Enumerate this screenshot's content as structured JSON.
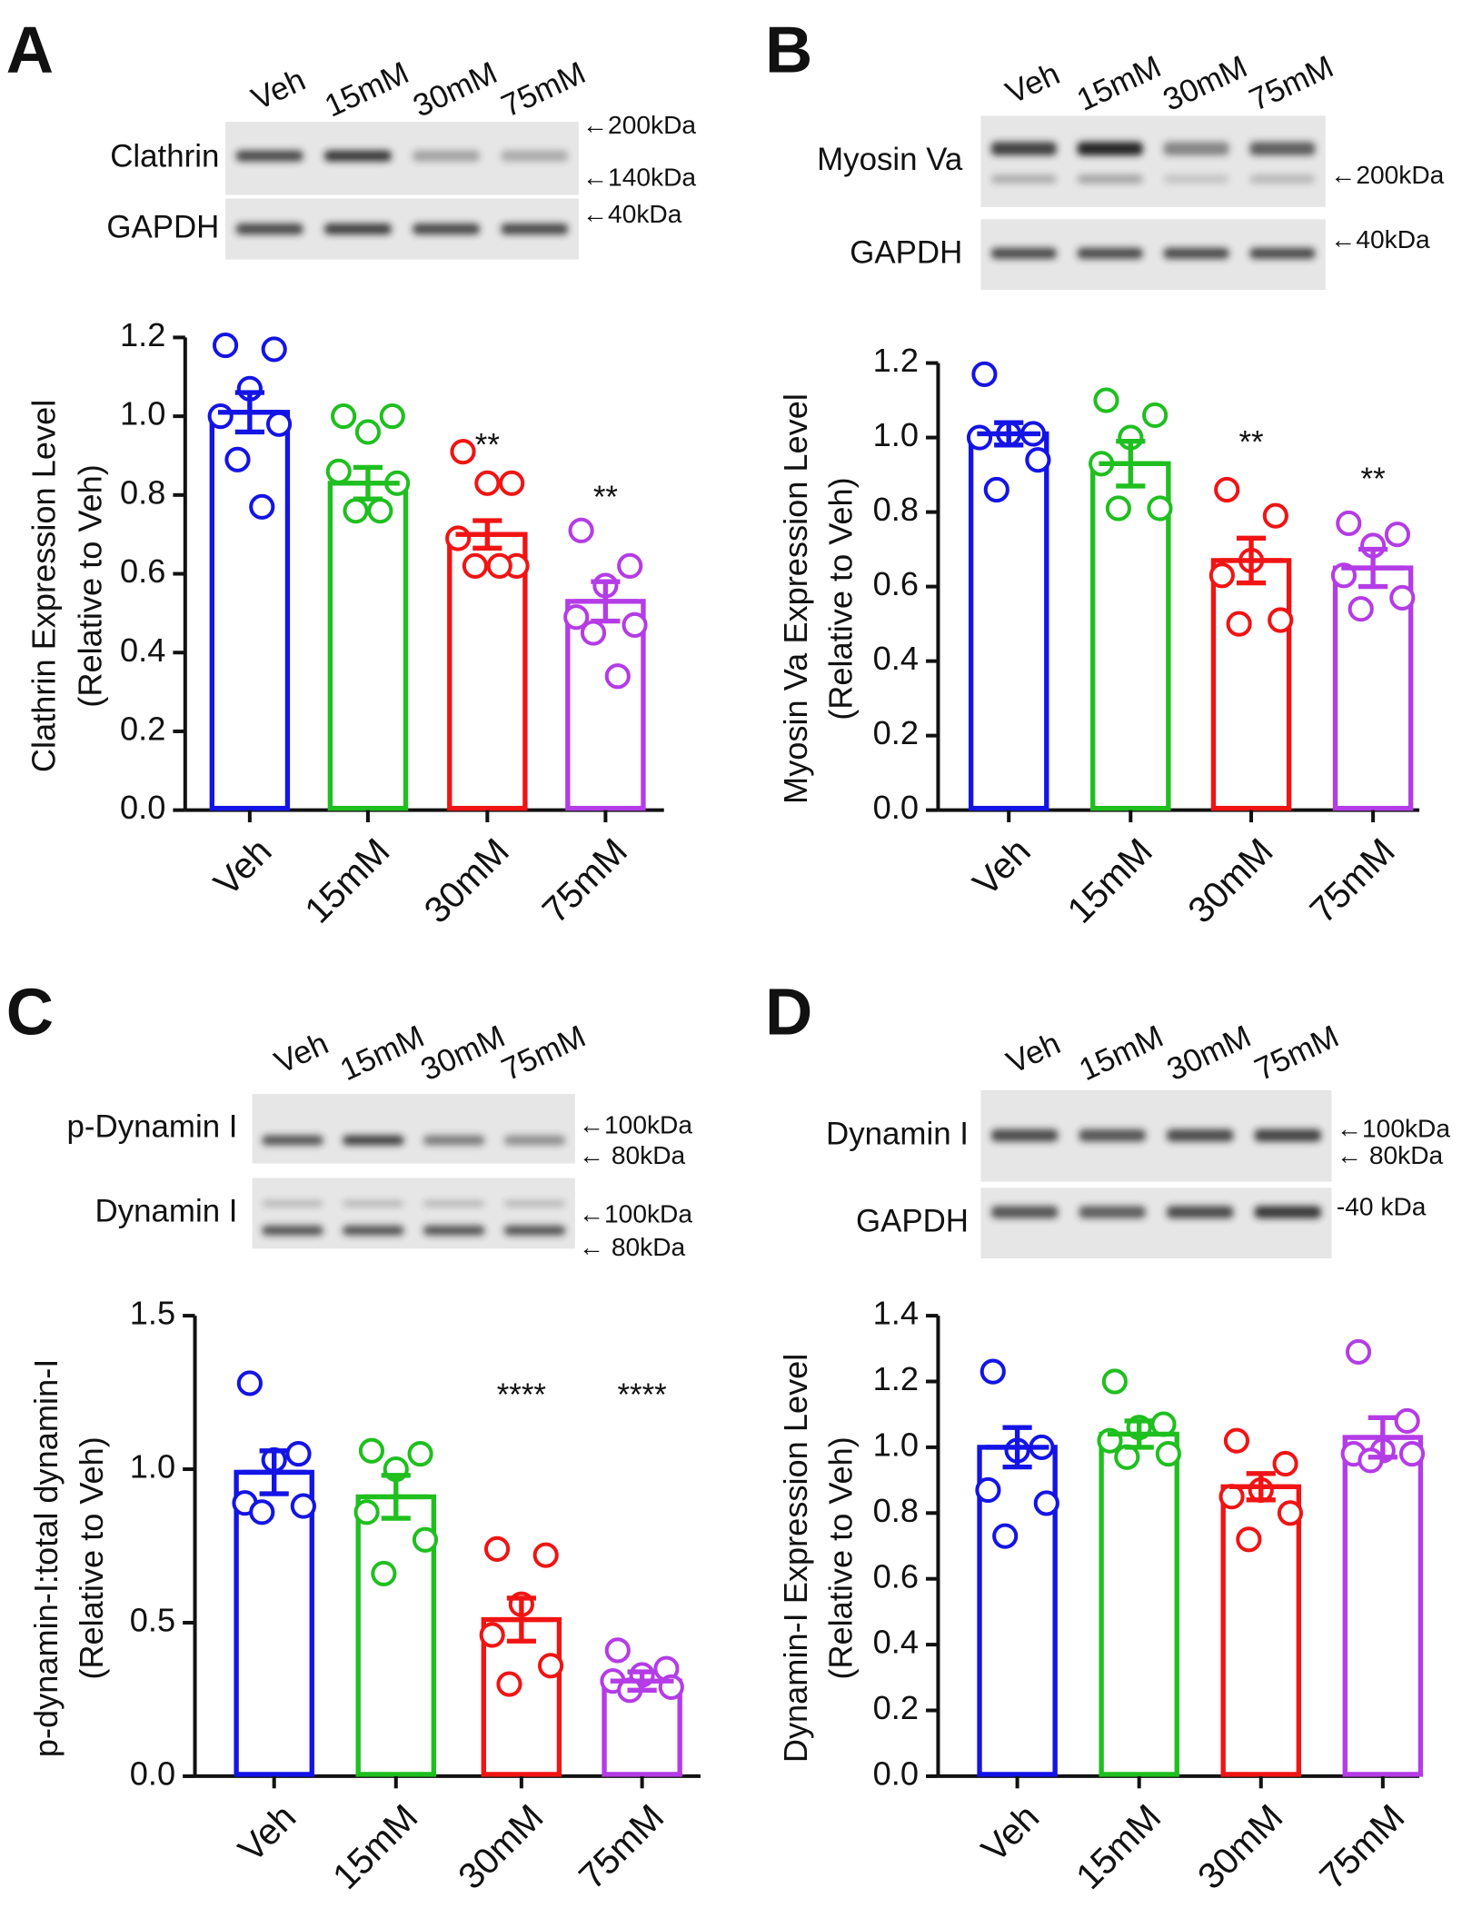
{
  "chart_data": [
    {
      "type": "bar",
      "panel": "A",
      "blot": {
        "lanes": [
          "Veh",
          "15mM",
          "30mM",
          "75mM"
        ],
        "rows": [
          "Clathrin",
          "GAPDH"
        ],
        "markers": [
          "←200kDa",
          "←140kDa",
          "←40kDa"
        ]
      },
      "ylabel": [
        "Clathrin Expression Level",
        "(Relative to Veh)"
      ],
      "categories": [
        "Veh",
        "15mM",
        "30mM",
        "75mM"
      ],
      "colors": [
        "#1414e6",
        "#1fbf1f",
        "#f01414",
        "#b43ce6"
      ],
      "values": [
        1.01,
        0.83,
        0.7,
        0.53
      ],
      "errors": [
        0.05,
        0.04,
        0.035,
        0.05
      ],
      "points": [
        [
          1.18,
          1.17,
          1.07,
          1.0,
          0.98,
          0.89,
          0.77
        ],
        [
          1.0,
          1.0,
          0.96,
          0.86,
          0.83,
          0.76,
          0.76
        ],
        [
          0.91,
          0.83,
          0.83,
          0.69,
          0.62,
          0.62,
          0.62
        ],
        [
          0.71,
          0.62,
          0.57,
          0.49,
          0.47,
          0.45,
          0.34
        ]
      ],
      "significance": [
        null,
        null,
        "**",
        "**"
      ],
      "ylim": [
        0,
        1.2
      ],
      "yticks": [
        {
          "value": 0,
          "label": "0.0"
        },
        0.2,
        0.4,
        0.6,
        0.8,
        {
          "value": 1,
          "label": "1.0"
        },
        1.2
      ]
    },
    {
      "type": "bar",
      "panel": "B",
      "blot": {
        "lanes": [
          "Veh",
          "15mM",
          "30mM",
          "75mM"
        ],
        "rows": [
          "Myosin Va",
          "GAPDH"
        ],
        "markers": [
          "←200kDa",
          "←40kDa"
        ]
      },
      "ylabel": [
        "Myosin Va Expression Level",
        "(Relative to Veh)"
      ],
      "categories": [
        "Veh",
        "15mM",
        "30mM",
        "75mM"
      ],
      "colors": [
        "#1414e6",
        "#1fbf1f",
        "#f01414",
        "#b43ce6"
      ],
      "values": [
        1.01,
        0.93,
        0.67,
        0.65
      ],
      "errors": [
        0.03,
        0.06,
        0.06,
        0.05
      ],
      "points": [
        [
          1.17,
          1.01,
          1.01,
          1.0,
          0.94,
          0.86
        ],
        [
          1.1,
          1.06,
          1.0,
          0.93,
          0.81,
          0.81
        ],
        [
          0.86,
          0.79,
          0.67,
          0.63,
          0.51,
          0.5
        ],
        [
          0.77,
          0.74,
          0.71,
          0.63,
          0.57,
          0.54
        ]
      ],
      "significance": [
        null,
        null,
        "**",
        "**"
      ],
      "ylim": [
        0,
        1.2
      ],
      "yticks": [
        {
          "value": 0,
          "label": "0.0"
        },
        0.2,
        0.4,
        0.6,
        0.8,
        {
          "value": 1,
          "label": "1.0"
        },
        1.2
      ]
    },
    {
      "type": "bar",
      "panel": "C",
      "blot": {
        "lanes": [
          "Veh",
          "15mM",
          "30mM",
          "75mM"
        ],
        "rows": [
          "p-Dynamin I",
          "Dynamin I"
        ],
        "markers": [
          "←100kDa",
          "← 80kDa",
          "←100kDa",
          "← 80kDa"
        ]
      },
      "ylabel": [
        "p-dynamin-I:total dynamin-I",
        "(Relative to Veh)"
      ],
      "categories": [
        "Veh",
        "15mM",
        "30mM",
        "75mM"
      ],
      "colors": [
        "#1414e6",
        "#1fbf1f",
        "#f01414",
        "#b43ce6"
      ],
      "values": [
        0.99,
        0.91,
        0.51,
        0.31
      ],
      "errors": [
        0.07,
        0.07,
        0.07,
        0.03
      ],
      "points": [
        [
          1.28,
          1.05,
          1.03,
          0.89,
          0.88,
          0.86
        ],
        [
          1.06,
          1.05,
          1.0,
          0.86,
          0.77,
          0.66
        ],
        [
          0.74,
          0.72,
          0.56,
          0.46,
          0.36,
          0.3
        ],
        [
          0.41,
          0.35,
          0.33,
          0.31,
          0.29,
          0.28
        ]
      ],
      "significance": [
        null,
        null,
        "****",
        "****"
      ],
      "ylim": [
        0,
        1.5
      ],
      "yticks": [
        {
          "value": 0,
          "label": "0.0"
        },
        0.5,
        {
          "value": 1,
          "label": "1.0"
        },
        1.5
      ]
    },
    {
      "type": "bar",
      "panel": "D",
      "blot": {
        "lanes": [
          "Veh",
          "15mM",
          "30mM",
          "75mM"
        ],
        "rows": [
          "Dynamin I",
          "GAPDH"
        ],
        "markers": [
          "←100kDa",
          "← 80kDa",
          "-40 kDa"
        ]
      },
      "ylabel": [
        "Dynamin-I Expression Level",
        "(Relative to Veh)"
      ],
      "categories": [
        "Veh",
        "15mM",
        "30mM",
        "75mM"
      ],
      "colors": [
        "#1414e6",
        "#1fbf1f",
        "#f01414",
        "#b43ce6"
      ],
      "values": [
        1.0,
        1.04,
        0.88,
        1.03
      ],
      "errors": [
        0.06,
        0.04,
        0.04,
        0.06
      ],
      "points": [
        [
          1.23,
          1.0,
          0.99,
          0.87,
          0.83,
          0.73
        ],
        [
          1.2,
          1.07,
          1.06,
          1.02,
          0.98,
          0.97
        ],
        [
          1.02,
          0.95,
          0.87,
          0.85,
          0.8,
          0.72
        ],
        [
          1.29,
          1.08,
          0.99,
          0.98,
          0.98,
          0.96
        ]
      ],
      "significance": [
        null,
        null,
        null,
        null
      ],
      "ylim": [
        0,
        1.4
      ],
      "yticks": [
        {
          "value": 0,
          "label": "0.0"
        },
        0.2,
        0.4,
        0.6,
        0.8,
        {
          "value": 1,
          "label": "1.0"
        },
        1.2,
        1.4
      ]
    }
  ]
}
